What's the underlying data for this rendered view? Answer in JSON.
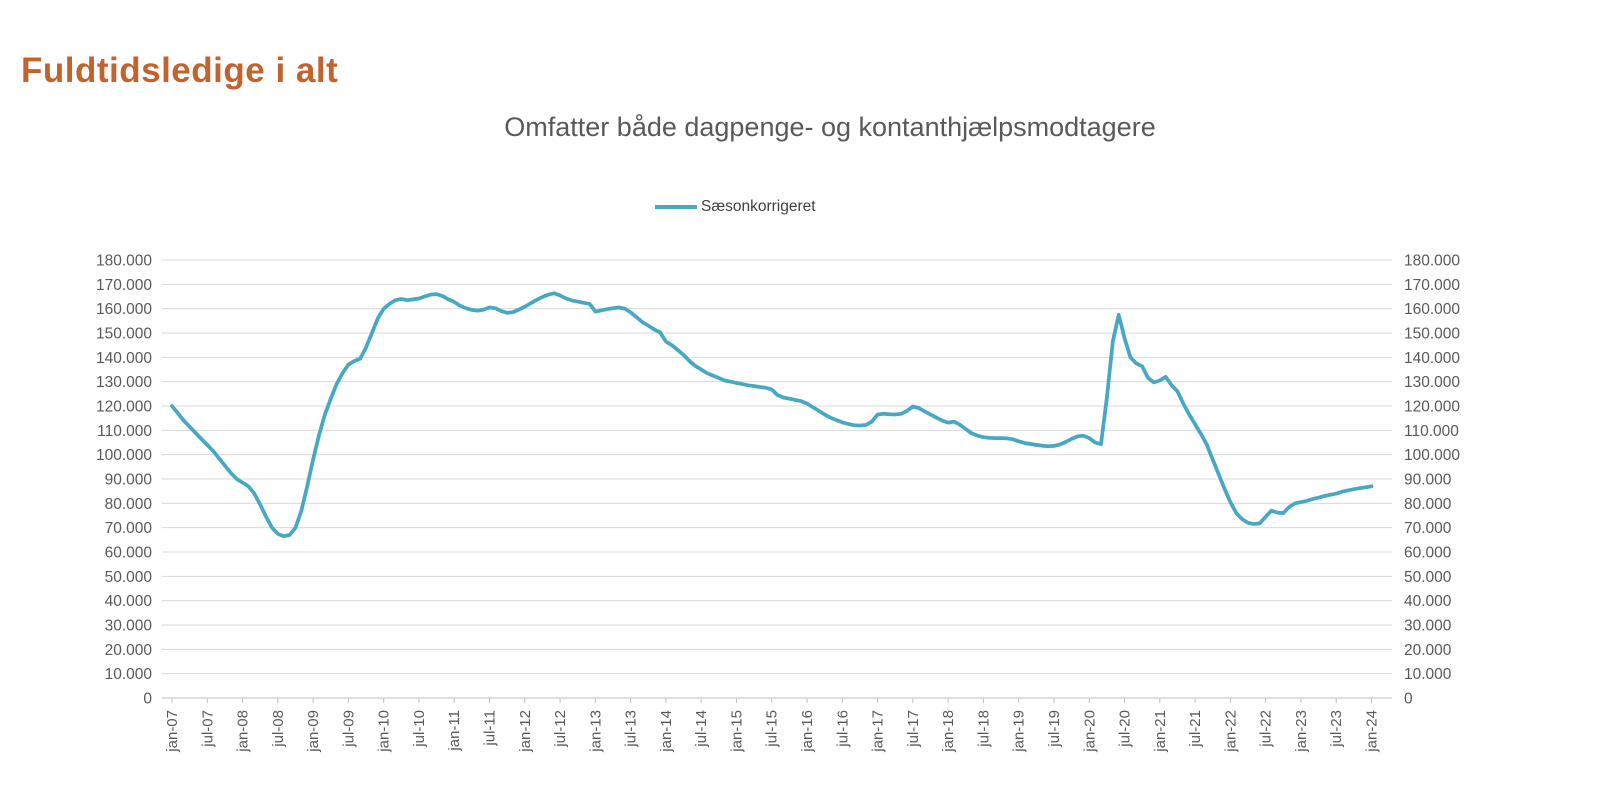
{
  "page_title": "Fuldtidsledige i alt",
  "legend": {
    "label": "Sæsonkorrigeret"
  },
  "chart_data": {
    "type": "line",
    "title": "Omfatter både dagpenge- og kontanthjælpsmodtagere",
    "legend_entries": [
      "Sæsonkorrigeret"
    ],
    "legend_position": "top-center",
    "grid": "horizontal",
    "line_color": "#48A8C4",
    "grid_color": "#D9D9D9",
    "axis_color": "#BFBFBF",
    "label_color": "#595959",
    "x_start": "jan-07",
    "x_end": "jan-24",
    "frequency": "monthly",
    "x_tick_every_months": 6,
    "x_tick_labels": [
      "jan-07",
      "jul-07",
      "jan-08",
      "jul-08",
      "jan-09",
      "jul-09",
      "jan-10",
      "jul-10",
      "jan-11",
      "jul-11",
      "jan-12",
      "jul-12",
      "jan-13",
      "jul-13",
      "jan-14",
      "jul-14",
      "jan-15",
      "jul-15",
      "jan-16",
      "jul-16",
      "jan-17",
      "jul-17",
      "jan-18",
      "jul-18",
      "jan-19",
      "jul-19",
      "jan-20",
      "jul-20",
      "jan-21",
      "jul-21",
      "jan-22",
      "jul-22",
      "jan-23",
      "jul-23",
      "jan-24"
    ],
    "ylim": [
      0,
      180000
    ],
    "y_step": 10000,
    "y_tick_labels": [
      "0",
      "10.000",
      "20.000",
      "30.000",
      "40.000",
      "50.000",
      "60.000",
      "70.000",
      "80.000",
      "90.000",
      "100.000",
      "110.000",
      "120.000",
      "130.000",
      "140.000",
      "150.000",
      "160.000",
      "170.000",
      "180.000"
    ],
    "y_axis_sides": [
      "left",
      "right"
    ],
    "values": [
      120000,
      117000,
      114000,
      111500,
      109000,
      106500,
      104000,
      101500,
      98500,
      95500,
      92500,
      90000,
      88500,
      87000,
      84000,
      79500,
      74500,
      70000,
      67500,
      66500,
      67000,
      70000,
      77000,
      87000,
      98000,
      108000,
      116500,
      123000,
      129000,
      133500,
      137000,
      138500,
      139500,
      144000,
      150000,
      156000,
      160000,
      162000,
      163500,
      164000,
      163500,
      163800,
      164200,
      165000,
      165800,
      166000,
      165200,
      163800,
      162800,
      161200,
      160200,
      159500,
      159200,
      159600,
      160500,
      160200,
      159000,
      158300,
      158600,
      159600,
      160800,
      162200,
      163600,
      164800,
      165800,
      166300,
      165400,
      164200,
      163400,
      162900,
      162400,
      162000,
      158800,
      159300,
      159800,
      160200,
      160500,
      160000,
      158500,
      156500,
      154500,
      153000,
      151500,
      150300,
      146500,
      145000,
      143000,
      141000,
      138500,
      136500,
      135000,
      133500,
      132500,
      131500,
      130500,
      130000,
      129500,
      129000,
      128500,
      128200,
      127800,
      127500,
      126800,
      124500,
      123500,
      123000,
      122500,
      122000,
      121000,
      119500,
      118000,
      116500,
      115200,
      114200,
      113300,
      112600,
      112100,
      112000,
      112200,
      113500,
      116500,
      116800,
      116600,
      116500,
      116800,
      118000,
      119800,
      119200,
      117800,
      116500,
      115200,
      114000,
      113200,
      113600,
      112300,
      110500,
      108800,
      107800,
      107200,
      106900,
      106800,
      106800,
      106700,
      106300,
      105500,
      104800,
      104400,
      104000,
      103700,
      103500,
      103600,
      104200,
      105200,
      106500,
      107500,
      107800,
      106800,
      105000,
      104300,
      123500,
      146500,
      157500,
      148000,
      140000,
      137500,
      136300,
      131500,
      129700,
      130500,
      132000,
      128500,
      126000,
      121000,
      116500,
      112500,
      108500,
      104000,
      98000,
      92000,
      86000,
      80500,
      76000,
      73500,
      72000,
      71500,
      71800,
      74500,
      77000,
      76200,
      76000,
      78500,
      80000,
      80500,
      81000,
      81800,
      82300,
      83000,
      83500,
      84000,
      84800,
      85300,
      85800,
      86200,
      86600,
      87000
    ]
  }
}
